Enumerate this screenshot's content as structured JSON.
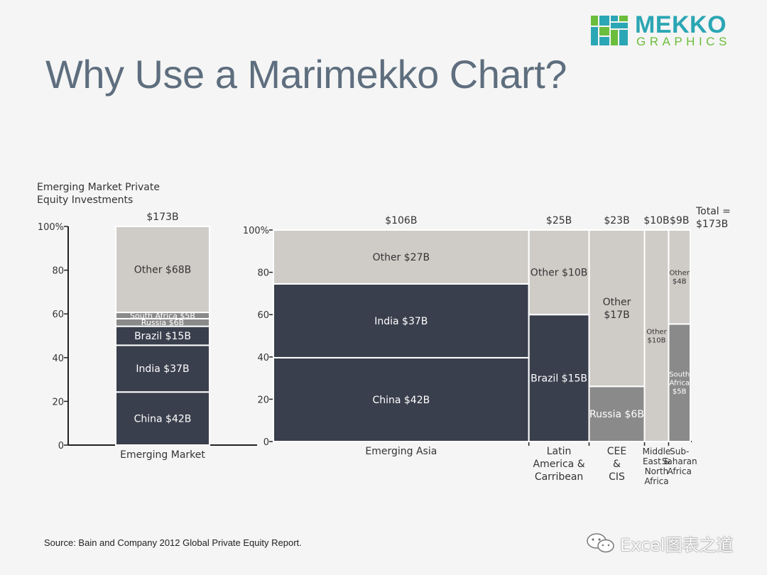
{
  "slide": {
    "title": "Why Use a Marimekko Chart?",
    "source": "Source: Bain and Company 2012 Global Private Equity Report.",
    "watermark": "Excel图表之道"
  },
  "logo": {
    "line1": "MEKKO",
    "line2": "GRAPHICS",
    "colors": [
      "#2ba6b4",
      "#6bbd3c"
    ]
  },
  "colors": {
    "dark": "#3a3f4d",
    "gray": "#8a8a8a",
    "light": "#cfccc8",
    "axis": "#222222"
  },
  "chart_data": [
    {
      "type": "bar",
      "stacked": true,
      "normalized": true,
      "axis_title": [
        "Emerging Market Private",
        "Equity Investments"
      ],
      "yticks": [
        0,
        20,
        40,
        60,
        80,
        100
      ],
      "ytick_labels": [
        "0",
        "20",
        "40",
        "60",
        "80",
        "100%"
      ],
      "ylim": [
        0,
        100
      ],
      "categories": [
        "Emerging Market"
      ],
      "total_label": "$173B",
      "segments": [
        {
          "name": "China",
          "value": 42,
          "label": "China $42B",
          "color": "dark"
        },
        {
          "name": "India",
          "value": 37,
          "label": "India $37B",
          "color": "dark"
        },
        {
          "name": "Brazil",
          "value": 15,
          "label": "Brazil $15B",
          "color": "dark"
        },
        {
          "name": "Russia",
          "value": 6,
          "label": "Russia $6B",
          "color": "gray"
        },
        {
          "name": "South Africa",
          "value": 5,
          "label": "South Africa $5B",
          "color": "gray"
        },
        {
          "name": "Other",
          "value": 68,
          "label": "Other $68B",
          "color": "light"
        }
      ]
    },
    {
      "type": "marimekko",
      "yticks": [
        0,
        20,
        40,
        60,
        80,
        100
      ],
      "ytick_labels": [
        "0",
        "20",
        "40",
        "60",
        "80",
        "100%"
      ],
      "ylim": [
        0,
        100
      ],
      "total_label": [
        "Total =",
        "$173B"
      ],
      "columns": [
        {
          "name": "Emerging Asia",
          "label": [
            "Emerging Asia"
          ],
          "total": 106,
          "total_label": "$106B",
          "segments": [
            {
              "name": "China",
              "value": 42,
              "label": [
                "China $42B"
              ],
              "color": "dark"
            },
            {
              "name": "India",
              "value": 37,
              "label": [
                "India $37B"
              ],
              "color": "dark"
            },
            {
              "name": "Other",
              "value": 27,
              "label": [
                "Other $27B"
              ],
              "color": "light"
            }
          ]
        },
        {
          "name": "Latin America & Carribean",
          "label": [
            "Latin",
            "America &",
            "Carribean"
          ],
          "total": 25,
          "total_label": "$25B",
          "segments": [
            {
              "name": "Brazil",
              "value": 15,
              "label": [
                "Brazil $15B"
              ],
              "color": "dark"
            },
            {
              "name": "Other",
              "value": 10,
              "label": [
                "Other $10B"
              ],
              "color": "light"
            }
          ]
        },
        {
          "name": "CEE & CIS",
          "label": [
            "CEE",
            "&",
            "CIS"
          ],
          "total": 23,
          "total_label": "$23B",
          "segments": [
            {
              "name": "Russia",
              "value": 6,
              "label": [
                "Russia $6B"
              ],
              "color": "gray"
            },
            {
              "name": "Other",
              "value": 17,
              "label": [
                "Other",
                "$17B"
              ],
              "color": "light"
            }
          ]
        },
        {
          "name": "Middle East & North Africa",
          "label": [
            "Middle",
            "East &",
            "North",
            "Africa"
          ],
          "total": 10,
          "total_label": "$10B",
          "segments": [
            {
              "name": "Other",
              "value": 10,
              "label": [
                "Other",
                "$10B"
              ],
              "color": "light"
            }
          ]
        },
        {
          "name": "Sub-Saharan Africa",
          "label": [
            "Sub-",
            "Saharan",
            "Africa"
          ],
          "total": 9,
          "total_label": "$9B",
          "segments": [
            {
              "name": "South Africa",
              "value": 5,
              "label": [
                "South",
                "Africa",
                "$5B"
              ],
              "color": "gray"
            },
            {
              "name": "Other",
              "value": 4,
              "label": [
                "Other",
                "$4B"
              ],
              "color": "light"
            }
          ]
        }
      ]
    }
  ]
}
